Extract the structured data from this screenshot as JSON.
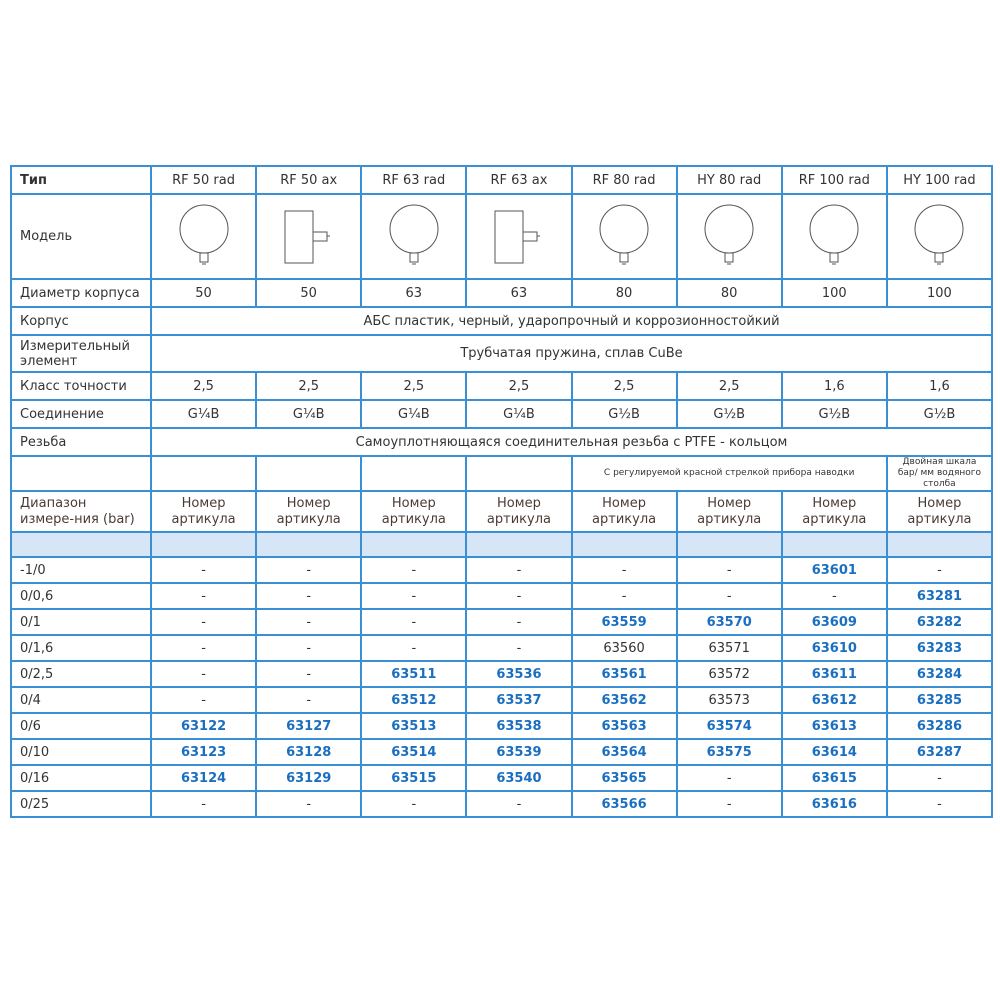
{
  "header": {
    "label": "Тип",
    "types": [
      "RF 50 rad",
      "RF 50 ax",
      "RF 63 rad",
      "RF 63 ax",
      "RF 80 rad",
      "HY 80 rad",
      "RF 100 rad",
      "HY 100 rad"
    ]
  },
  "model": {
    "label": "Модель",
    "icons": [
      "radial-gauge-icon",
      "axial-gauge-icon",
      "radial-gauge-icon",
      "axial-gauge-icon",
      "radial-gauge-icon",
      "radial-gauge-icon",
      "radial-gauge-icon",
      "radial-gauge-icon"
    ]
  },
  "diameter": {
    "label": "Диаметр корпуса",
    "values": [
      "50",
      "50",
      "63",
      "63",
      "80",
      "80",
      "100",
      "100"
    ]
  },
  "housing": {
    "label": "Корпус",
    "value": "АБС пластик, черный, ударопрочный и коррозионностойкий"
  },
  "element": {
    "label": "Измерительный элемент",
    "value": "Трубчатая пружина, сплав CuBe"
  },
  "accuracy": {
    "label": "Класс точности",
    "values": [
      "2,5",
      "2,5",
      "2,5",
      "2,5",
      "2,5",
      "2,5",
      "1,6",
      "1,6"
    ]
  },
  "connection": {
    "label": "Соединение",
    "values": [
      "G¼B",
      "G¼B",
      "G¼B",
      "G¼B",
      "G½B",
      "G½B",
      "G½B",
      "G½B"
    ]
  },
  "thread": {
    "label": "Резьба",
    "value": "Самоуплотняющаяся соединительная резьба с PTFE - кольцом"
  },
  "notes": {
    "red_pointer": "С регулируемой красной стрелкой прибора наводки",
    "dual_scale": "Двойная шкала бар/ мм водяного столба"
  },
  "range_header": {
    "label": "Диапазон измере-ния (bar)",
    "article": "Номер артикула"
  },
  "rows": [
    {
      "range": "-1/0",
      "cells": [
        "-",
        "-",
        "-",
        "-",
        "-",
        "-",
        "63601",
        "-"
      ],
      "plain": []
    },
    {
      "range": "0/0,6",
      "cells": [
        "-",
        "-",
        "-",
        "-",
        "-",
        "-",
        "-",
        "63281"
      ],
      "plain": []
    },
    {
      "range": "0/1",
      "cells": [
        "-",
        "-",
        "-",
        "-",
        "63559",
        "63570",
        "63609",
        "63282"
      ],
      "plain": []
    },
    {
      "range": "0/1,6",
      "cells": [
        "-",
        "-",
        "-",
        "-",
        "63560",
        "63571",
        "63610",
        "63283"
      ],
      "plain": [
        4,
        5
      ]
    },
    {
      "range": "0/2,5",
      "cells": [
        "-",
        "-",
        "63511",
        "63536",
        "63561",
        "63572",
        "63611",
        "63284"
      ],
      "plain": [
        5
      ]
    },
    {
      "range": "0/4",
      "cells": [
        "-",
        "-",
        "63512",
        "63537",
        "63562",
        "63573",
        "63612",
        "63285"
      ],
      "plain": [
        5
      ]
    },
    {
      "range": "0/6",
      "cells": [
        "63122",
        "63127",
        "63513",
        "63538",
        "63563",
        "63574",
        "63613",
        "63286"
      ],
      "plain": []
    },
    {
      "range": "0/10",
      "cells": [
        "63123",
        "63128",
        "63514",
        "63539",
        "63564",
        "63575",
        "63614",
        "63287"
      ],
      "plain": []
    },
    {
      "range": "0/16",
      "cells": [
        "63124",
        "63129",
        "63515",
        "63540",
        "63565",
        "-",
        "63615",
        "-"
      ],
      "plain": []
    },
    {
      "range": "0/25",
      "cells": [
        "-",
        "-",
        "-",
        "-",
        "63566",
        "-",
        "63616",
        "-"
      ],
      "plain": []
    }
  ]
}
